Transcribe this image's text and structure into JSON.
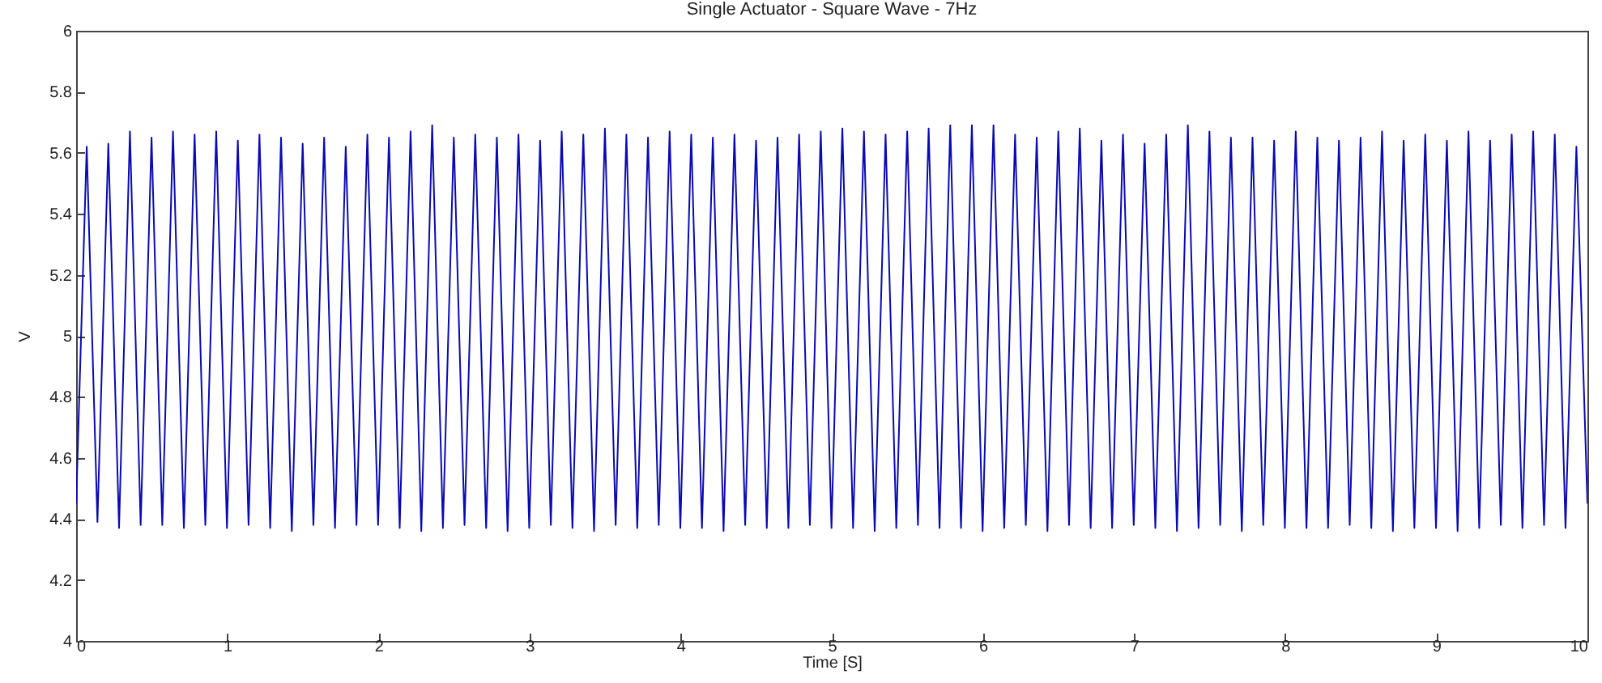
{
  "chart_data": {
    "type": "line",
    "title": "Single Actuator - Square Wave - 7Hz",
    "xlabel": "Time [S]",
    "ylabel": "V",
    "xlim": [
      0,
      10
    ],
    "ylim": [
      4,
      6
    ],
    "xticks": [
      0,
      1,
      2,
      3,
      4,
      5,
      6,
      7,
      8,
      9,
      10
    ],
    "yticks": [
      4,
      4.2,
      4.4,
      4.6,
      4.8,
      5,
      5.2,
      5.4,
      5.6,
      5.8,
      6
    ],
    "grid": false,
    "marker": "none",
    "line_style": "solid",
    "x": [
      0,
      0.07,
      0.141,
      0.213,
      0.284,
      0.356,
      0.427,
      0.499,
      0.57,
      0.641,
      0.713,
      0.784,
      0.855,
      0.927,
      0.998,
      1.07,
      1.141,
      1.213,
      1.284,
      1.356,
      1.427,
      1.499,
      1.57,
      1.641,
      1.713,
      1.784,
      1.855,
      1.927,
      1.998,
      2.07,
      2.141,
      2.213,
      2.284,
      2.356,
      2.427,
      2.499,
      2.57,
      2.641,
      2.713,
      2.784,
      2.855,
      2.927,
      2.998,
      3.07,
      3.141,
      3.213,
      3.284,
      3.356,
      3.427,
      3.499,
      3.57,
      3.641,
      3.713,
      3.784,
      3.855,
      3.927,
      3.998,
      4.07,
      4.141,
      4.213,
      4.284,
      4.356,
      4.427,
      4.499,
      4.57,
      4.641,
      4.713,
      4.784,
      4.855,
      4.927,
      4.998,
      5.07,
      5.141,
      5.213,
      5.284,
      5.356,
      5.427,
      5.499,
      5.57,
      5.641,
      5.713,
      5.784,
      5.855,
      5.927,
      5.998,
      6.07,
      6.141,
      6.213,
      6.284,
      6.356,
      6.427,
      6.499,
      6.57,
      6.641,
      6.713,
      6.784,
      6.855,
      6.927,
      6.998,
      7.07,
      7.141,
      7.213,
      7.284,
      7.356,
      7.427,
      7.499,
      7.57,
      7.641,
      7.713,
      7.784,
      7.855,
      7.927,
      7.998,
      8.07,
      8.141,
      8.213,
      8.284,
      8.356,
      8.427,
      8.499,
      8.57,
      8.641,
      8.713,
      8.784,
      8.855,
      8.927,
      8.998,
      9.07,
      9.141,
      9.213,
      9.284,
      9.356,
      9.427,
      9.499,
      9.57,
      9.641,
      9.713,
      9.784,
      9.855,
      9.927,
      10
    ],
    "series": [
      {
        "color": "#0a0ab4",
        "values": [
          4.45,
          5.62,
          4.39,
          5.63,
          4.37,
          5.67,
          4.38,
          5.65,
          4.38,
          5.67,
          4.37,
          5.66,
          4.38,
          5.67,
          4.37,
          5.64,
          4.38,
          5.66,
          4.37,
          5.65,
          4.36,
          5.63,
          4.38,
          5.65,
          4.37,
          5.62,
          4.38,
          5.66,
          4.38,
          5.65,
          4.37,
          5.67,
          4.36,
          5.69,
          4.37,
          5.65,
          4.38,
          5.66,
          4.37,
          5.65,
          4.36,
          5.66,
          4.37,
          5.64,
          4.38,
          5.67,
          4.37,
          5.66,
          4.36,
          5.68,
          4.38,
          5.66,
          4.37,
          5.65,
          4.38,
          5.67,
          4.37,
          5.66,
          4.37,
          5.65,
          4.36,
          5.66,
          4.38,
          5.64,
          4.37,
          5.65,
          4.37,
          5.66,
          4.38,
          5.67,
          4.37,
          5.68,
          4.37,
          5.67,
          4.36,
          5.66,
          4.37,
          5.67,
          4.38,
          5.68,
          4.37,
          5.69,
          4.37,
          5.69,
          4.36,
          5.69,
          4.37,
          5.66,
          4.38,
          5.65,
          4.36,
          5.67,
          4.38,
          5.68,
          4.37,
          5.64,
          4.37,
          5.66,
          4.38,
          5.63,
          4.37,
          5.66,
          4.36,
          5.69,
          4.37,
          5.67,
          4.38,
          5.65,
          4.36,
          5.65,
          4.38,
          5.64,
          4.37,
          5.67,
          4.37,
          5.65,
          4.37,
          5.64,
          4.38,
          5.65,
          4.37,
          5.67,
          4.36,
          5.64,
          4.37,
          5.66,
          4.37,
          5.64,
          4.36,
          5.67,
          4.37,
          5.64,
          4.38,
          5.66,
          4.37,
          5.67,
          4.38,
          5.66,
          4.37,
          5.62,
          4.45
        ]
      }
    ]
  }
}
